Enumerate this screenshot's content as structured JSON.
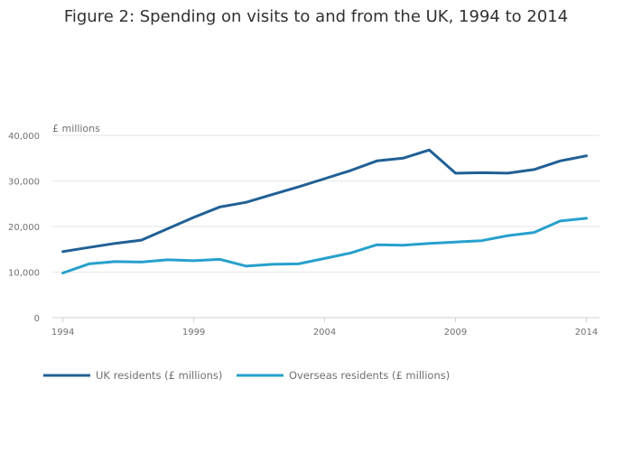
{
  "chart_data": {
    "type": "line",
    "title": "Figure 2: Spending on visits to and from the UK, 1994 to 2014",
    "ylabel": "£ millions",
    "xlabel": "",
    "x": [
      1994,
      1995,
      1996,
      1997,
      1998,
      1999,
      2000,
      2001,
      2002,
      2003,
      2004,
      2005,
      2006,
      2007,
      2008,
      2009,
      2010,
      2011,
      2012,
      2013,
      2014
    ],
    "xlim": [
      1993.6,
      2014.5
    ],
    "x_ticks": [
      1994,
      1999,
      2004,
      2009,
      2014
    ],
    "x_tick_labels": [
      "1994",
      "1999",
      "2004",
      "2009",
      "2014"
    ],
    "ylim": [
      0,
      40000
    ],
    "y_ticks": [
      0,
      10000,
      20000,
      30000,
      40000
    ],
    "y_tick_labels": [
      "0",
      "10,000",
      "20,000",
      "30,000",
      "40,000"
    ],
    "grid": true,
    "legend_position": "bottom-left",
    "series": [
      {
        "name": "UK residents (£ millions)",
        "color": "#206095",
        "values": [
          14500,
          15400,
          16300,
          17000,
          19500,
          22000,
          24300,
          25300,
          27000,
          28700,
          30500,
          32300,
          34400,
          35000,
          36800,
          31700,
          31800,
          31700,
          32500,
          34400,
          35500
        ]
      },
      {
        "name": "Overseas residents (£ millions)",
        "color": "#27a0cc",
        "values": [
          9800,
          11800,
          12300,
          12200,
          12700,
          12500,
          12800,
          11300,
          11700,
          11800,
          13000,
          14200,
          16000,
          15900,
          16300,
          16600,
          16900,
          18000,
          18700,
          21200,
          21800
        ]
      }
    ]
  }
}
